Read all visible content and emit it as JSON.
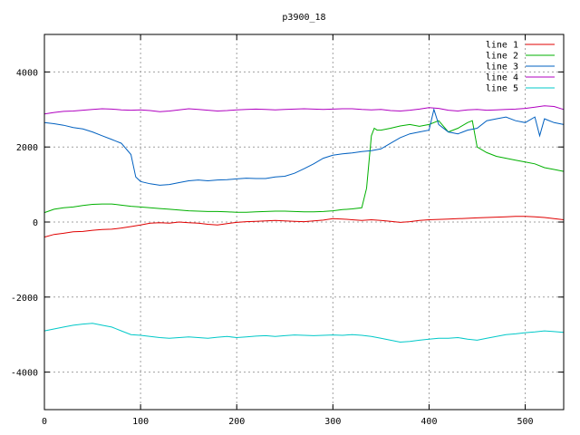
{
  "chart_data": {
    "type": "line",
    "title": "p3900_18",
    "xlabel": "",
    "ylabel": "",
    "xlim": [
      0,
      540
    ],
    "ylim": [
      -5000,
      5000
    ],
    "xticks": [
      0,
      100,
      200,
      300,
      400,
      500
    ],
    "yticks": [
      -4000,
      -2000,
      0,
      2000,
      4000
    ],
    "grid": true,
    "legend_position": "top-right",
    "series": [
      {
        "name": "line 1",
        "color": "#e00000",
        "x": [
          0,
          10,
          20,
          30,
          40,
          50,
          60,
          70,
          80,
          90,
          100,
          110,
          120,
          130,
          140,
          150,
          160,
          170,
          180,
          190,
          200,
          210,
          220,
          230,
          240,
          250,
          260,
          270,
          280,
          290,
          300,
          310,
          320,
          330,
          340,
          350,
          360,
          370,
          380,
          390,
          400,
          410,
          420,
          430,
          440,
          450,
          460,
          470,
          480,
          490,
          500,
          510,
          520,
          530,
          540
        ],
        "y": [
          -400,
          -330,
          -300,
          -260,
          -250,
          -220,
          -200,
          -190,
          -160,
          -120,
          -80,
          -30,
          -20,
          -30,
          0,
          -20,
          -30,
          -60,
          -80,
          -40,
          -10,
          10,
          20,
          30,
          40,
          30,
          20,
          10,
          30,
          50,
          90,
          80,
          60,
          40,
          60,
          40,
          20,
          -10,
          10,
          40,
          60,
          70,
          80,
          90,
          100,
          110,
          120,
          130,
          140,
          150,
          150,
          140,
          120,
          90,
          60
        ]
      },
      {
        "name": "line 2",
        "color": "#00b000",
        "x": [
          0,
          10,
          20,
          30,
          40,
          50,
          60,
          70,
          80,
          90,
          100,
          110,
          120,
          130,
          140,
          150,
          160,
          170,
          180,
          190,
          200,
          210,
          220,
          230,
          240,
          250,
          260,
          270,
          280,
          290,
          300,
          310,
          320,
          330,
          335,
          340,
          343,
          346,
          350,
          360,
          370,
          380,
          390,
          400,
          410,
          420,
          430,
          440,
          445,
          450,
          460,
          470,
          480,
          490,
          500,
          510,
          520,
          530,
          540
        ],
        "y": [
          250,
          340,
          380,
          400,
          440,
          470,
          480,
          480,
          450,
          420,
          400,
          380,
          360,
          340,
          320,
          300,
          290,
          280,
          280,
          270,
          260,
          260,
          270,
          280,
          290,
          290,
          280,
          270,
          270,
          280,
          300,
          330,
          350,
          380,
          900,
          2300,
          2500,
          2450,
          2450,
          2500,
          2560,
          2600,
          2550,
          2600,
          2700,
          2400,
          2500,
          2650,
          2700,
          2000,
          1850,
          1750,
          1700,
          1650,
          1600,
          1550,
          1450,
          1400,
          1350
        ]
      },
      {
        "name": "line 3",
        "color": "#0060c0",
        "x": [
          0,
          10,
          20,
          30,
          40,
          50,
          60,
          70,
          80,
          90,
          95,
          100,
          110,
          120,
          130,
          140,
          150,
          160,
          170,
          180,
          190,
          200,
          210,
          220,
          230,
          240,
          250,
          260,
          270,
          280,
          290,
          300,
          310,
          320,
          330,
          340,
          350,
          360,
          370,
          380,
          390,
          400,
          405,
          410,
          420,
          430,
          440,
          450,
          460,
          470,
          480,
          490,
          500,
          510,
          515,
          520,
          530,
          540
        ],
        "y": [
          2650,
          2620,
          2580,
          2520,
          2480,
          2400,
          2300,
          2200,
          2100,
          1800,
          1200,
          1080,
          1020,
          980,
          1000,
          1050,
          1100,
          1120,
          1100,
          1120,
          1130,
          1150,
          1170,
          1160,
          1160,
          1200,
          1220,
          1300,
          1420,
          1550,
          1700,
          1780,
          1820,
          1840,
          1880,
          1900,
          1950,
          2100,
          2250,
          2350,
          2400,
          2450,
          3000,
          2600,
          2400,
          2350,
          2450,
          2500,
          2700,
          2750,
          2800,
          2700,
          2650,
          2800,
          2300,
          2750,
          2650,
          2600
        ]
      },
      {
        "name": "line 4",
        "color": "#b000c0",
        "x": [
          0,
          10,
          20,
          30,
          40,
          50,
          60,
          70,
          80,
          90,
          100,
          110,
          120,
          130,
          140,
          150,
          160,
          170,
          180,
          190,
          200,
          210,
          220,
          230,
          240,
          250,
          260,
          270,
          280,
          290,
          300,
          310,
          320,
          330,
          340,
          350,
          360,
          370,
          380,
          390,
          400,
          410,
          420,
          430,
          440,
          450,
          460,
          470,
          480,
          490,
          500,
          510,
          520,
          530,
          540
        ],
        "y": [
          2880,
          2920,
          2950,
          2960,
          2980,
          3000,
          3020,
          3010,
          2990,
          2980,
          2990,
          2970,
          2940,
          2960,
          2990,
          3020,
          3000,
          2980,
          2960,
          2970,
          2990,
          3000,
          3010,
          3000,
          2990,
          3000,
          3010,
          3020,
          3010,
          3000,
          3010,
          3020,
          3020,
          3000,
          2990,
          3000,
          2970,
          2960,
          2980,
          3010,
          3050,
          3030,
          2980,
          2960,
          2990,
          3000,
          2980,
          2990,
          3000,
          3010,
          3030,
          3060,
          3100,
          3080,
          3000
        ]
      },
      {
        "name": "line 5",
        "color": "#00c8c8",
        "x": [
          0,
          10,
          20,
          30,
          40,
          50,
          60,
          70,
          80,
          90,
          100,
          110,
          120,
          130,
          140,
          150,
          160,
          170,
          180,
          190,
          200,
          210,
          220,
          230,
          240,
          250,
          260,
          270,
          280,
          290,
          300,
          310,
          320,
          330,
          340,
          350,
          360,
          370,
          380,
          390,
          400,
          410,
          420,
          430,
          440,
          450,
          460,
          470,
          480,
          490,
          500,
          510,
          520,
          530,
          540
        ],
        "y": [
          -2900,
          -2850,
          -2800,
          -2750,
          -2720,
          -2700,
          -2750,
          -2800,
          -2900,
          -3000,
          -3020,
          -3050,
          -3080,
          -3100,
          -3080,
          -3060,
          -3080,
          -3100,
          -3070,
          -3050,
          -3080,
          -3060,
          -3040,
          -3030,
          -3050,
          -3030,
          -3010,
          -3020,
          -3030,
          -3020,
          -3010,
          -3020,
          -3000,
          -3020,
          -3050,
          -3100,
          -3150,
          -3200,
          -3180,
          -3150,
          -3120,
          -3100,
          -3100,
          -3080,
          -3120,
          -3150,
          -3100,
          -3050,
          -3000,
          -2980,
          -2950,
          -2930,
          -2900,
          -2920,
          -2940
        ]
      }
    ]
  }
}
